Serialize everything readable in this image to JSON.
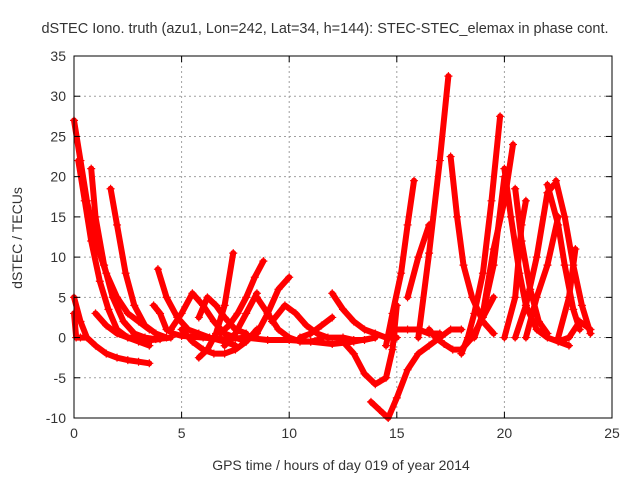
{
  "chart_data": {
    "type": "scatter",
    "title": "dSTEC Iono. truth (azu1, Lon=242, Lat=34, h=144): STEC-STEC_elemax in phase cont.",
    "xlabel": "GPS time / hours of day 019 of year 2014",
    "ylabel": "dSTEC  / TECUs",
    "xlim": [
      0,
      25
    ],
    "ylim": [
      -10,
      35
    ],
    "xticks": [
      0,
      5,
      10,
      15,
      20,
      25
    ],
    "yticks": [
      -10,
      -5,
      0,
      5,
      10,
      15,
      20,
      25,
      30,
      35
    ],
    "grid": true,
    "legend": "none",
    "marker": "+",
    "color": "#ff0000",
    "series": [
      {
        "points": [
          [
            0.0,
            27.0
          ],
          [
            0.3,
            22.0
          ],
          [
            0.6,
            17.0
          ],
          [
            1.0,
            12.0
          ],
          [
            1.5,
            8.0
          ],
          [
            2.0,
            5.0
          ],
          [
            2.5,
            3.0
          ],
          [
            3.0,
            2.0
          ],
          [
            3.5,
            1.0
          ]
        ]
      },
      {
        "points": [
          [
            0.2,
            22.0
          ],
          [
            0.5,
            17.0
          ],
          [
            0.8,
            12.0
          ],
          [
            1.2,
            7.0
          ],
          [
            1.6,
            3.5
          ],
          [
            2.0,
            1.0
          ],
          [
            2.5,
            0.0
          ],
          [
            3.0,
            -0.5
          ],
          [
            3.5,
            -1.0
          ]
        ]
      },
      {
        "points": [
          [
            0.0,
            5.0
          ],
          [
            0.3,
            2.0
          ],
          [
            0.6,
            0.0
          ],
          [
            1.0,
            -1.0
          ],
          [
            1.5,
            -2.0
          ],
          [
            2.0,
            -2.5
          ],
          [
            2.5,
            -2.8
          ],
          [
            3.0,
            -3.0
          ],
          [
            3.5,
            -3.2
          ]
        ]
      },
      {
        "points": [
          [
            0.0,
            3.0
          ],
          [
            0.1,
            0.0
          ],
          [
            0.3,
            0.0
          ],
          [
            0.6,
            0.0
          ]
        ]
      },
      {
        "points": [
          [
            0.8,
            21.0
          ],
          [
            1.0,
            15.0
          ],
          [
            1.4,
            9.0
          ],
          [
            1.8,
            5.0
          ],
          [
            2.3,
            2.0
          ],
          [
            2.8,
            0.5
          ],
          [
            3.3,
            0.0
          ],
          [
            3.8,
            -0.2
          ],
          [
            4.5,
            0.0
          ]
        ]
      },
      {
        "points": [
          [
            1.7,
            18.5
          ],
          [
            2.0,
            14.0
          ],
          [
            2.4,
            8.0
          ],
          [
            2.8,
            4.0
          ],
          [
            3.3,
            1.5
          ],
          [
            3.8,
            0.5
          ],
          [
            4.3,
            0.0
          ]
        ]
      },
      {
        "points": [
          [
            1.0,
            3.0
          ],
          [
            1.5,
            1.5
          ],
          [
            2.0,
            0.5
          ],
          [
            2.5,
            0.0
          ],
          [
            3.0,
            0.0
          ],
          [
            3.6,
            -0.3
          ],
          [
            4.0,
            -0.2
          ]
        ]
      },
      {
        "points": [
          [
            3.7,
            4.0
          ],
          [
            4.0,
            3.0
          ],
          [
            4.3,
            1.0
          ],
          [
            4.6,
            0.5
          ],
          [
            5.0,
            0.2
          ],
          [
            6.0,
            0.0
          ],
          [
            7.0,
            -0.2
          ],
          [
            8.0,
            0.0
          ],
          [
            9.0,
            -0.3
          ],
          [
            10.0,
            -0.3
          ],
          [
            11.0,
            -0.5
          ],
          [
            12.0,
            -0.8
          ],
          [
            13.0,
            -0.5
          ],
          [
            14.0,
            0.0
          ]
        ]
      },
      {
        "points": [
          [
            3.9,
            8.5
          ],
          [
            4.3,
            5.0
          ],
          [
            4.8,
            2.5
          ],
          [
            5.3,
            1.0
          ],
          [
            5.8,
            0.5
          ],
          [
            6.3,
            0.0
          ],
          [
            7.0,
            -0.5
          ],
          [
            7.5,
            -1.0
          ]
        ]
      },
      {
        "points": [
          [
            4.5,
            1.0
          ],
          [
            5.0,
            3.0
          ],
          [
            5.5,
            5.5
          ],
          [
            6.0,
            4.0
          ],
          [
            6.5,
            2.0
          ],
          [
            7.0,
            0.5
          ],
          [
            7.5,
            0.0
          ],
          [
            8.0,
            -0.5
          ]
        ]
      },
      {
        "points": [
          [
            5.0,
            1.0
          ],
          [
            5.5,
            -0.5
          ],
          [
            6.0,
            -1.5
          ],
          [
            6.5,
            -2.0
          ],
          [
            7.0,
            -2.0
          ],
          [
            7.5,
            -1.5
          ],
          [
            8.0,
            -0.5
          ],
          [
            8.5,
            1.0
          ]
        ]
      },
      {
        "points": [
          [
            5.8,
            2.5
          ],
          [
            6.2,
            5.0
          ],
          [
            6.6,
            4.0
          ],
          [
            7.0,
            2.5
          ],
          [
            7.5,
            1.0
          ],
          [
            8.0,
            0.5
          ]
        ]
      },
      {
        "points": [
          [
            5.8,
            -2.5
          ],
          [
            6.2,
            -1.5
          ],
          [
            6.6,
            0.5
          ],
          [
            7.0,
            4.0
          ],
          [
            7.4,
            10.5
          ]
        ]
      },
      {
        "points": [
          [
            6.8,
            0.5
          ],
          [
            7.2,
            1.5
          ],
          [
            7.6,
            3.0
          ],
          [
            8.0,
            5.0
          ],
          [
            8.4,
            7.5
          ],
          [
            8.8,
            9.5
          ]
        ]
      },
      {
        "points": [
          [
            7.0,
            -1.0
          ],
          [
            7.5,
            0.5
          ],
          [
            8.0,
            3.0
          ],
          [
            8.5,
            5.5
          ]
        ]
      },
      {
        "points": [
          [
            8.5,
            0.5
          ],
          [
            9.0,
            3.0
          ],
          [
            9.5,
            6.0
          ],
          [
            10.0,
            7.5
          ]
        ]
      },
      {
        "points": [
          [
            8.5,
            5.0
          ],
          [
            9.0,
            3.0
          ],
          [
            9.5,
            1.0
          ],
          [
            10.0,
            0.0
          ],
          [
            10.5,
            -0.5
          ],
          [
            11.0,
            -0.5
          ],
          [
            11.5,
            -0.2
          ]
        ]
      },
      {
        "points": [
          [
            9.2,
            2.0
          ],
          [
            9.8,
            4.0
          ],
          [
            10.3,
            3.0
          ],
          [
            10.8,
            1.5
          ],
          [
            11.3,
            0.5
          ],
          [
            11.8,
            0.0
          ],
          [
            12.5,
            0.0
          ],
          [
            13.0,
            -0.3
          ],
          [
            13.5,
            -0.3
          ],
          [
            14.0,
            0.0
          ]
        ]
      },
      {
        "points": [
          [
            10.5,
            0.0
          ],
          [
            11.0,
            0.5
          ],
          [
            11.5,
            1.5
          ],
          [
            12.0,
            2.5
          ]
        ]
      },
      {
        "points": [
          [
            12.5,
            -0.5
          ],
          [
            13.0,
            -2.0
          ],
          [
            13.5,
            -4.5
          ],
          [
            14.0,
            -5.8
          ],
          [
            14.5,
            -5.0
          ],
          [
            14.8,
            -1.5
          ],
          [
            15.0,
            4.0
          ]
        ]
      },
      {
        "points": [
          [
            12.0,
            5.5
          ],
          [
            12.5,
            3.5
          ],
          [
            13.0,
            2.0
          ],
          [
            13.5,
            1.0
          ],
          [
            14.0,
            0.5
          ],
          [
            14.5,
            0.0
          ],
          [
            15.0,
            0.0
          ]
        ]
      },
      {
        "points": [
          [
            13.8,
            -8.0
          ],
          [
            14.2,
            -9.0
          ],
          [
            14.6,
            -10.0
          ],
          [
            15.0,
            -7.5
          ],
          [
            15.5,
            -4.0
          ],
          [
            16.0,
            -2.0
          ],
          [
            16.5,
            -1.0
          ],
          [
            17.0,
            0.0
          ],
          [
            17.5,
            1.0
          ],
          [
            18.0,
            1.0
          ]
        ]
      },
      {
        "points": [
          [
            14.5,
            -1.0
          ],
          [
            14.8,
            3.0
          ],
          [
            15.2,
            8.0
          ],
          [
            15.5,
            14.0
          ],
          [
            15.8,
            19.5
          ]
        ]
      },
      {
        "points": [
          [
            15.0,
            1.0
          ],
          [
            15.5,
            1.0
          ],
          [
            16.0,
            1.0
          ],
          [
            16.5,
            0.5
          ],
          [
            17.0,
            0.5
          ]
        ]
      },
      {
        "points": [
          [
            15.5,
            5.0
          ],
          [
            16.0,
            10.0
          ],
          [
            16.5,
            14.0
          ]
        ]
      },
      {
        "points": [
          [
            16.0,
            0.0
          ],
          [
            16.5,
            10.5
          ],
          [
            17.0,
            22.0
          ],
          [
            17.4,
            32.5
          ]
        ]
      },
      {
        "points": [
          [
            16.5,
            1.0
          ],
          [
            16.8,
            0.0
          ],
          [
            17.2,
            -0.8
          ],
          [
            17.6,
            -1.5
          ],
          [
            18.0,
            -1.5
          ],
          [
            18.5,
            0.0
          ],
          [
            19.0,
            2.5
          ],
          [
            19.5,
            5.0
          ]
        ]
      },
      {
        "points": [
          [
            17.5,
            22.5
          ],
          [
            17.8,
            15.0
          ],
          [
            18.1,
            9.0
          ],
          [
            18.5,
            5.0
          ],
          [
            19.0,
            2.0
          ],
          [
            19.5,
            0.5
          ]
        ]
      },
      {
        "points": [
          [
            18.0,
            -2.0
          ],
          [
            18.3,
            0.0
          ],
          [
            18.6,
            3.0
          ],
          [
            19.0,
            8.0
          ],
          [
            19.4,
            17.0
          ],
          [
            19.8,
            27.5
          ]
        ]
      },
      {
        "points": [
          [
            18.6,
            0.0
          ],
          [
            19.0,
            3.0
          ],
          [
            19.5,
            9.0
          ],
          [
            20.0,
            20.0
          ]
        ]
      },
      {
        "points": [
          [
            19.0,
            3.0
          ],
          [
            19.5,
            11.0
          ],
          [
            20.0,
            17.0
          ],
          [
            20.4,
            24.0
          ]
        ]
      },
      {
        "points": [
          [
            20.0,
            21.0
          ],
          [
            20.3,
            15.0
          ],
          [
            20.7,
            8.0
          ],
          [
            21.0,
            4.0
          ],
          [
            21.5,
            1.0
          ],
          [
            22.0,
            0.0
          ],
          [
            22.5,
            -0.5
          ],
          [
            23.0,
            -1.0
          ]
        ]
      },
      {
        "points": [
          [
            20.5,
            18.5
          ],
          [
            20.8,
            12.0
          ],
          [
            21.2,
            6.0
          ],
          [
            21.6,
            2.0
          ],
          [
            22.0,
            0.5
          ]
        ]
      },
      {
        "points": [
          [
            20.0,
            0.0
          ],
          [
            20.5,
            5.0
          ],
          [
            20.8,
            14.0
          ],
          [
            21.0,
            17.0
          ]
        ]
      },
      {
        "points": [
          [
            20.5,
            0.0
          ],
          [
            21.0,
            4.0
          ],
          [
            21.5,
            10.0
          ],
          [
            22.0,
            18.0
          ],
          [
            22.3,
            19.0
          ]
        ]
      },
      {
        "points": [
          [
            21.0,
            0.0
          ],
          [
            21.5,
            5.0
          ],
          [
            22.0,
            9.0
          ],
          [
            22.5,
            15.0
          ]
        ]
      },
      {
        "points": [
          [
            22.0,
            19.0
          ],
          [
            22.5,
            14.0
          ],
          [
            22.8,
            9.0
          ],
          [
            23.2,
            3.5
          ],
          [
            23.5,
            1.0
          ]
        ]
      },
      {
        "points": [
          [
            22.4,
            19.5
          ],
          [
            22.8,
            15.0
          ],
          [
            23.2,
            9.0
          ],
          [
            23.6,
            4.0
          ],
          [
            24.0,
            0.5
          ]
        ]
      },
      {
        "points": [
          [
            22.5,
            0.0
          ],
          [
            23.0,
            5.0
          ],
          [
            23.3,
            11.0
          ]
        ]
      },
      {
        "points": [
          [
            22.5,
            -0.5
          ],
          [
            23.0,
            0.0
          ],
          [
            23.5,
            2.0
          ],
          [
            24.0,
            1.0
          ]
        ]
      }
    ]
  }
}
